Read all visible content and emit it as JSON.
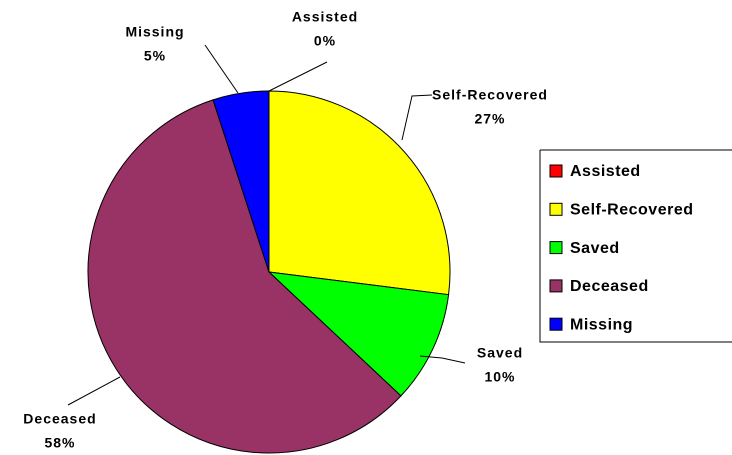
{
  "chart_data": {
    "type": "pie",
    "categories": [
      "Assisted",
      "Self-Recovered",
      "Saved",
      "Deceased",
      "Missing"
    ],
    "values": [
      0,
      27,
      10,
      58,
      5
    ],
    "value_labels": [
      "0%",
      "27%",
      "10%",
      "58%",
      "5%"
    ],
    "colors": [
      "#ff0000",
      "#ffff00",
      "#00ff00",
      "#993366",
      "#0000ff"
    ],
    "legend": "right"
  }
}
